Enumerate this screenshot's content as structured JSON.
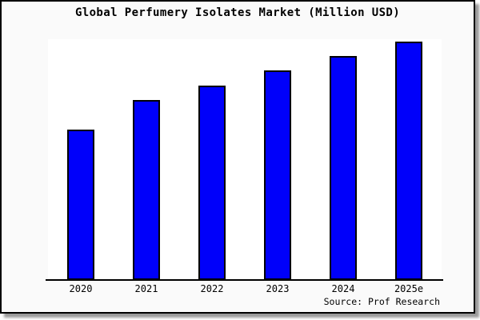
{
  "window": {
    "background": "#fafafa",
    "frame_border_color": "#000000",
    "shadow_color": "#9a9a9a"
  },
  "chart_data": {
    "type": "bar",
    "title": "Global Perfumery Isolates Market (Million USD)",
    "categories": [
      "2020",
      "2021",
      "2022",
      "2023",
      "2024",
      "2025e"
    ],
    "values": [
      63,
      75.5,
      81.5,
      88,
      94,
      100
    ],
    "value_scale_note": "y-axis has no tick labels in source image; values are relative bar heights as % of 2025e bar",
    "xlabel": "",
    "ylabel": "",
    "ylim": [
      0,
      100
    ],
    "grid": false,
    "legend": false,
    "bar_color": "#0000fa",
    "bar_border_color": "#000000",
    "plot_background": "#ffffff",
    "axis_color": "#000000"
  },
  "source": {
    "label": "Source: Prof Research"
  }
}
